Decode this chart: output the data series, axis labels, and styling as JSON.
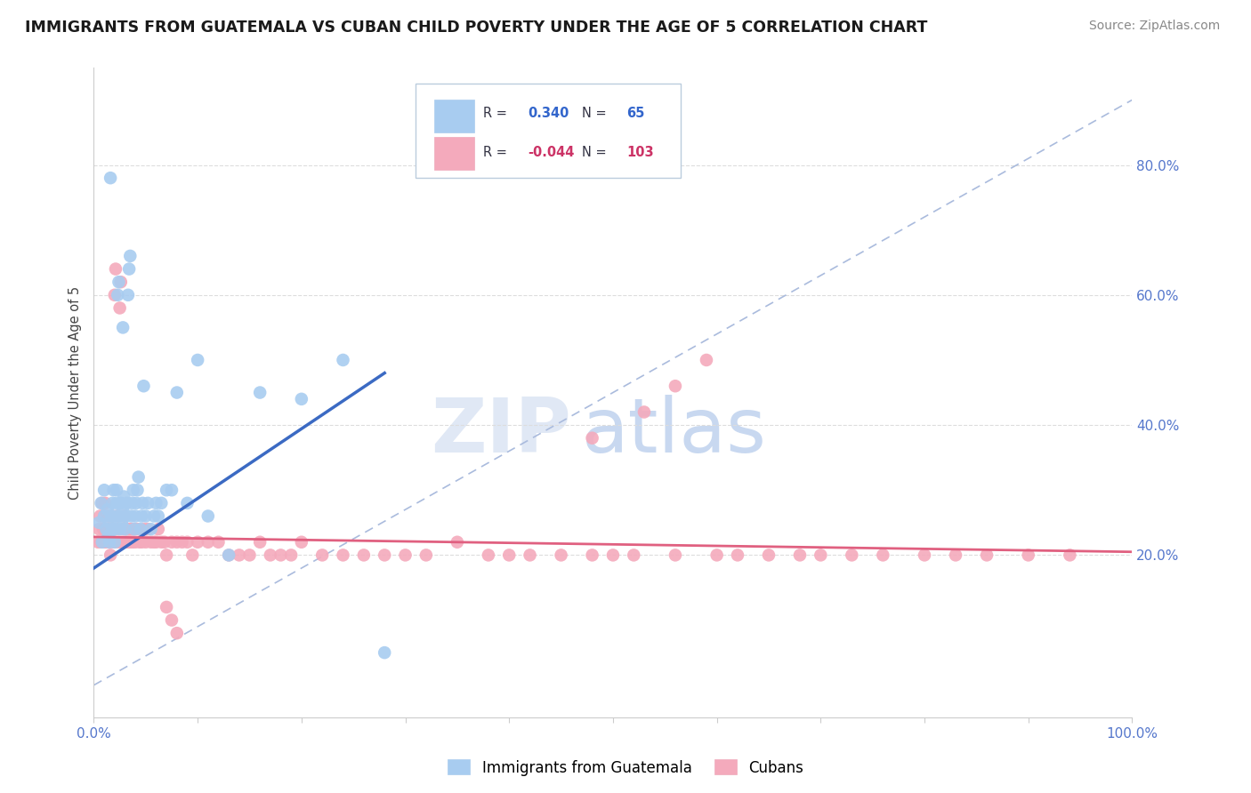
{
  "title": "IMMIGRANTS FROM GUATEMALA VS CUBAN CHILD POVERTY UNDER THE AGE OF 5 CORRELATION CHART",
  "source": "Source: ZipAtlas.com",
  "ylabel": "Child Poverty Under the Age of 5",
  "xlim": [
    0,
    1.0
  ],
  "ylim": [
    -0.05,
    0.95
  ],
  "label1": "Immigrants from Guatemala",
  "label2": "Cubans",
  "color_blue": "#A8CCF0",
  "color_pink": "#F4AABC",
  "line_blue": "#3B6AC3",
  "line_pink": "#E06080",
  "line_gray": "#AAAACC",
  "background_color": "#FFFFFF",
  "watermark_zip": "ZIP",
  "watermark_atlas": "atlas",
  "r1_val": "0.340",
  "n1_val": "65",
  "r2_val": "-0.044",
  "n2_val": "103",
  "guatemala_x": [
    0.005,
    0.007,
    0.008,
    0.01,
    0.01,
    0.012,
    0.013,
    0.014,
    0.015,
    0.015,
    0.016,
    0.017,
    0.018,
    0.018,
    0.019,
    0.02,
    0.02,
    0.021,
    0.022,
    0.022,
    0.023,
    0.024,
    0.025,
    0.025,
    0.026,
    0.027,
    0.028,
    0.028,
    0.029,
    0.03,
    0.031,
    0.032,
    0.033,
    0.034,
    0.035,
    0.036,
    0.037,
    0.038,
    0.039,
    0.04,
    0.041,
    0.042,
    0.043,
    0.045,
    0.046,
    0.047,
    0.048,
    0.05,
    0.052,
    0.055,
    0.058,
    0.06,
    0.062,
    0.065,
    0.07,
    0.075,
    0.08,
    0.09,
    0.1,
    0.11,
    0.13,
    0.16,
    0.2,
    0.24,
    0.28
  ],
  "guatemala_y": [
    0.25,
    0.28,
    0.22,
    0.26,
    0.3,
    0.24,
    0.27,
    0.23,
    0.25,
    0.22,
    0.78,
    0.26,
    0.24,
    0.28,
    0.3,
    0.22,
    0.24,
    0.26,
    0.28,
    0.3,
    0.6,
    0.62,
    0.24,
    0.26,
    0.28,
    0.25,
    0.55,
    0.27,
    0.29,
    0.24,
    0.26,
    0.28,
    0.6,
    0.64,
    0.66,
    0.26,
    0.28,
    0.3,
    0.24,
    0.26,
    0.28,
    0.3,
    0.32,
    0.24,
    0.26,
    0.28,
    0.46,
    0.26,
    0.28,
    0.24,
    0.26,
    0.28,
    0.26,
    0.28,
    0.3,
    0.3,
    0.45,
    0.28,
    0.5,
    0.26,
    0.2,
    0.45,
    0.44,
    0.5,
    0.05
  ],
  "cubans_x": [
    0.004,
    0.005,
    0.006,
    0.007,
    0.008,
    0.009,
    0.01,
    0.01,
    0.011,
    0.012,
    0.013,
    0.014,
    0.015,
    0.015,
    0.016,
    0.017,
    0.018,
    0.019,
    0.02,
    0.02,
    0.021,
    0.022,
    0.023,
    0.024,
    0.025,
    0.026,
    0.027,
    0.028,
    0.029,
    0.03,
    0.031,
    0.032,
    0.033,
    0.034,
    0.035,
    0.036,
    0.037,
    0.038,
    0.039,
    0.04,
    0.042,
    0.044,
    0.046,
    0.048,
    0.05,
    0.052,
    0.055,
    0.058,
    0.06,
    0.062,
    0.065,
    0.068,
    0.07,
    0.075,
    0.08,
    0.085,
    0.09,
    0.095,
    0.1,
    0.11,
    0.12,
    0.13,
    0.14,
    0.15,
    0.16,
    0.17,
    0.18,
    0.19,
    0.2,
    0.22,
    0.24,
    0.26,
    0.28,
    0.3,
    0.32,
    0.35,
    0.38,
    0.4,
    0.42,
    0.45,
    0.48,
    0.5,
    0.52,
    0.56,
    0.6,
    0.62,
    0.65,
    0.68,
    0.7,
    0.73,
    0.76,
    0.8,
    0.83,
    0.86,
    0.9,
    0.94,
    0.48,
    0.53,
    0.56,
    0.59,
    0.07,
    0.075,
    0.08
  ],
  "cubans_y": [
    0.22,
    0.24,
    0.26,
    0.22,
    0.28,
    0.24,
    0.22,
    0.26,
    0.28,
    0.22,
    0.24,
    0.26,
    0.24,
    0.22,
    0.2,
    0.24,
    0.26,
    0.22,
    0.22,
    0.6,
    0.64,
    0.24,
    0.26,
    0.22,
    0.58,
    0.62,
    0.22,
    0.24,
    0.26,
    0.22,
    0.24,
    0.22,
    0.24,
    0.22,
    0.24,
    0.22,
    0.24,
    0.22,
    0.24,
    0.22,
    0.24,
    0.22,
    0.22,
    0.24,
    0.22,
    0.24,
    0.22,
    0.22,
    0.22,
    0.24,
    0.22,
    0.22,
    0.2,
    0.22,
    0.22,
    0.22,
    0.22,
    0.2,
    0.22,
    0.22,
    0.22,
    0.2,
    0.2,
    0.2,
    0.22,
    0.2,
    0.2,
    0.2,
    0.22,
    0.2,
    0.2,
    0.2,
    0.2,
    0.2,
    0.2,
    0.22,
    0.2,
    0.2,
    0.2,
    0.2,
    0.2,
    0.2,
    0.2,
    0.2,
    0.2,
    0.2,
    0.2,
    0.2,
    0.2,
    0.2,
    0.2,
    0.2,
    0.2,
    0.2,
    0.2,
    0.2,
    0.38,
    0.42,
    0.46,
    0.5,
    0.12,
    0.1,
    0.08
  ]
}
